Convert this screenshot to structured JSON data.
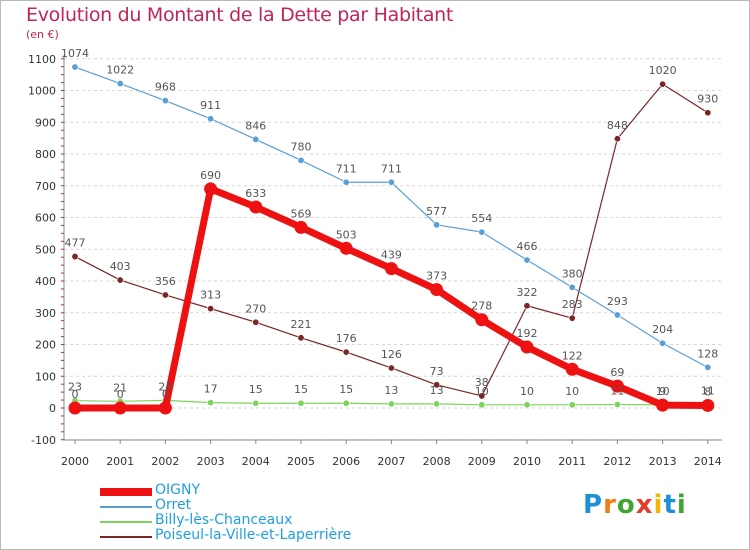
{
  "title": "Evolution du Montant de la Dette par Habitant",
  "unit": "(en €)",
  "logo": {
    "letters": [
      "P",
      "r",
      "o",
      "x",
      "i",
      "t",
      "i"
    ],
    "colors": [
      "#1f8fd6",
      "#f07d1a",
      "#3fa535",
      "#e63c2e",
      "#f5b400",
      "#1f8fd6",
      "#3fa535"
    ]
  },
  "chart_data": {
    "type": "line",
    "title": "Evolution du Montant de la Dette par Habitant",
    "ylabel": "(en €)",
    "xlabel": "",
    "ylim": [
      -100,
      1100
    ],
    "yticks": [
      -100,
      0,
      100,
      200,
      300,
      400,
      500,
      600,
      700,
      800,
      900,
      1000,
      1100
    ],
    "categories": [
      "2000",
      "2001",
      "2002",
      "2003",
      "2004",
      "2005",
      "2006",
      "2007",
      "2008",
      "2009",
      "2010",
      "2011",
      "2012",
      "2013",
      "2014"
    ],
    "grid": "horizontal",
    "legend": "bottom-left",
    "series": [
      {
        "name": "OIGNY",
        "color": "#ee1111",
        "values": [
          0,
          0,
          0,
          690,
          633,
          569,
          503,
          439,
          373,
          278,
          192,
          122,
          69,
          9,
          8
        ],
        "labels": [
          "0",
          "0",
          "0",
          "690",
          "633",
          "569",
          "503",
          "439",
          "373",
          "278",
          "192",
          "122",
          "69",
          "9",
          "8"
        ]
      },
      {
        "name": "Orret",
        "color": "#5a9fd4",
        "values": [
          1074,
          1022,
          968,
          911,
          846,
          780,
          711,
          711,
          577,
          554,
          466,
          380,
          293,
          204,
          128
        ],
        "labels": [
          "1074",
          "1022",
          "968",
          "911",
          "846",
          "780",
          "711",
          "711",
          "577",
          "554",
          "466",
          "380",
          "293",
          "204",
          "128"
        ]
      },
      {
        "name": "Billy-lès-Chanceaux",
        "color": "#7fd35a",
        "values": [
          23,
          21,
          24,
          17,
          15,
          15,
          15,
          13,
          13,
          10,
          10,
          10,
          11,
          10,
          11
        ],
        "labels": [
          "23",
          "21",
          "24",
          "17",
          "15",
          "15",
          "15",
          "13",
          "13",
          "10",
          "10",
          "10",
          "11",
          "10",
          "11"
        ]
      },
      {
        "name": "Poiseul-la-Ville-et-Laperrière",
        "color": "#7a2626",
        "values": [
          477,
          403,
          356,
          313,
          270,
          221,
          176,
          126,
          73,
          38,
          322,
          283,
          848,
          1020,
          930
        ],
        "labels": [
          "477",
          "403",
          "356",
          "313",
          "270",
          "221",
          "176",
          "126",
          "73",
          "38",
          "322",
          "283",
          "848",
          "1020",
          "930"
        ]
      }
    ]
  }
}
